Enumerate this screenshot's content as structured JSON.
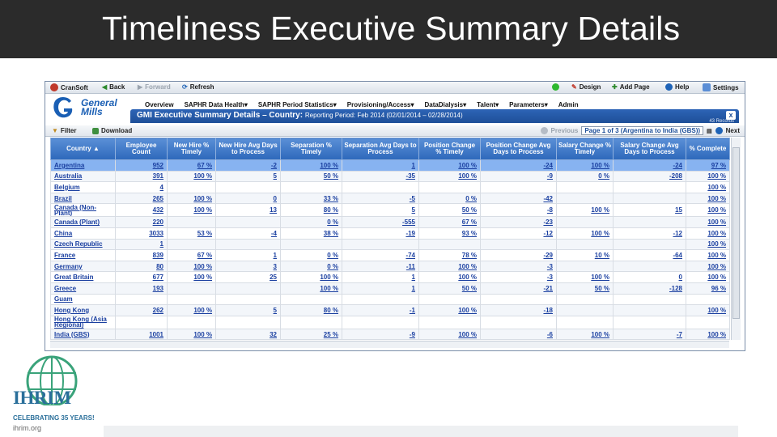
{
  "slide": {
    "title": "Timeliness Executive Summary Details"
  },
  "toolbar": {
    "app_name": "CranSoft",
    "back": "Back",
    "forward": "Forward",
    "refresh": "Refresh",
    "design": "Design",
    "add_page": "Add Page",
    "help": "Help",
    "settings": "Settings"
  },
  "logo": {
    "line1": "General",
    "line2": "Mills"
  },
  "menu": [
    "Overview",
    "SAPHR Data Health",
    "SAPHR Period Statistics",
    "Provisioning/Access",
    "DataDialysis",
    "Talent",
    "Parameters",
    "Admin"
  ],
  "panel": {
    "title": "GMI Executive Summary Details – Country:",
    "period": "Reporting Period: Feb 2014 (02/01/2014 – 02/28/2014)",
    "records": "43 Records",
    "close": "x"
  },
  "filter_bar": {
    "filter": "Filter",
    "download": "Download",
    "previous": "Previous",
    "page_select": "Page 1 of 3 (Argentina to India (GBS))",
    "next": "Next"
  },
  "table": {
    "columns": [
      "Country ▲",
      "Employee Count",
      "New Hire % Timely",
      "New Hire Avg Days to Process",
      "Separation % Timely",
      "Separation Avg Days to Process",
      "Position Change % Timely",
      "Position Change Avg Days to Process",
      "Salary Change % Timely",
      "Salary Change Avg Days to Process",
      "% Complete"
    ],
    "rows": [
      [
        "Argentina",
        "952",
        "67 %",
        "-2",
        "100 %",
        "1",
        "100 %",
        "-24",
        "100 %",
        "-24",
        "97 %"
      ],
      [
        "Australia",
        "391",
        "100 %",
        "5",
        "50 %",
        "-35",
        "100 %",
        "-9",
        "0 %",
        "-208",
        "100 %"
      ],
      [
        "Belgium",
        "4",
        "",
        "",
        "",
        "",
        "",
        "",
        "",
        "",
        "100 %"
      ],
      [
        "Brazil",
        "265",
        "100 %",
        "0",
        "33 %",
        "-5",
        "0 %",
        "-42",
        "",
        "",
        "100 %"
      ],
      [
        "Canada (Non-Plant)",
        "432",
        "100 %",
        "13",
        "80 %",
        "5",
        "50 %",
        "-8",
        "100 %",
        "15",
        "100 %"
      ],
      [
        "Canada (Plant)",
        "220",
        "",
        "",
        "0 %",
        "-555",
        "67 %",
        "-23",
        "",
        "",
        "100 %"
      ],
      [
        "China",
        "3033",
        "53 %",
        "-4",
        "38 %",
        "-19",
        "93 %",
        "-12",
        "100 %",
        "-12",
        "100 %"
      ],
      [
        "Czech Republic",
        "1",
        "",
        "",
        "",
        "",
        "",
        "",
        "",
        "",
        "100 %"
      ],
      [
        "France",
        "839",
        "67 %",
        "1",
        "0 %",
        "-74",
        "78 %",
        "-29",
        "10 %",
        "-64",
        "100 %"
      ],
      [
        "Germany",
        "80",
        "100 %",
        "3",
        "0 %",
        "-11",
        "100 %",
        "-3",
        "",
        "",
        "100 %"
      ],
      [
        "Great Britain",
        "677",
        "100 %",
        "25",
        "100 %",
        "1",
        "100 %",
        "-3",
        "100 %",
        "0",
        "100 %"
      ],
      [
        "Greece",
        "193",
        "",
        "",
        "100 %",
        "1",
        "50 %",
        "-21",
        "50 %",
        "-128",
        "96 %"
      ],
      [
        "Guam",
        "",
        "",
        "",
        "",
        "",
        "",
        "",
        "",
        "",
        ""
      ],
      [
        "Hong Kong",
        "262",
        "100 %",
        "5",
        "80 %",
        "-1",
        "100 %",
        "-18",
        "",
        "",
        "100 %"
      ],
      [
        "Hong Kong (Asia Regional)",
        "",
        "",
        "",
        "",
        "",
        "",
        "",
        "",
        "",
        ""
      ],
      [
        "India (GBS)",
        "1001",
        "100 %",
        "32",
        "25 %",
        "-9",
        "100 %",
        "-6",
        "100 %",
        "-7",
        "100 %"
      ]
    ]
  },
  "ihrim": {
    "name": "IHRIM",
    "tagline": "CELEBRATING 35 YEARS!",
    "url": "ihrim.org"
  },
  "colors": {
    "title_bg": "#2b2b2b",
    "header_blue": "#2d68bb",
    "selected_row": "#87b3f1",
    "link": "#1a3fa0"
  }
}
